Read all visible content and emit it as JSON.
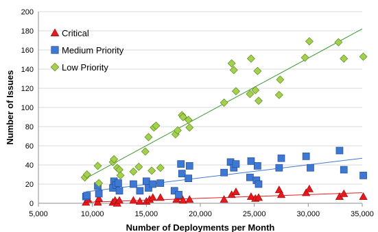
{
  "chart_data": {
    "type": "scatter",
    "title": "",
    "xlabel": "Number of Deployments per Month",
    "ylabel": "Number of Issues",
    "xlim": [
      5000,
      35000
    ],
    "ylim": [
      0,
      200
    ],
    "xticks": [
      "5,000",
      "10,000",
      "15,000",
      "20,000",
      "25,000",
      "30,000",
      "35,000"
    ],
    "yticks": [
      "0",
      "20",
      "40",
      "60",
      "80",
      "100",
      "120",
      "140",
      "160",
      "180",
      "200"
    ],
    "grid": true,
    "legend_position": "top-left",
    "series": [
      {
        "name": "Critical",
        "marker": "triangle",
        "color": "#e8191c",
        "trend": [
          [
            9400,
            1
          ],
          [
            35000,
            11
          ]
        ],
        "points": [
          [
            9400,
            1
          ],
          [
            9600,
            4
          ],
          [
            10500,
            1
          ],
          [
            10600,
            5
          ],
          [
            11900,
            1
          ],
          [
            12100,
            3
          ],
          [
            12300,
            0
          ],
          [
            12500,
            3
          ],
          [
            13800,
            3
          ],
          [
            14400,
            2
          ],
          [
            15000,
            2
          ],
          [
            15300,
            4
          ],
          [
            15600,
            6
          ],
          [
            16300,
            6
          ],
          [
            17800,
            4
          ],
          [
            18200,
            7
          ],
          [
            18400,
            3
          ],
          [
            19000,
            4
          ],
          [
            22200,
            4
          ],
          [
            22900,
            9
          ],
          [
            23300,
            12
          ],
          [
            24700,
            7
          ],
          [
            25100,
            5
          ],
          [
            25400,
            6
          ],
          [
            27300,
            14
          ],
          [
            27500,
            9
          ],
          [
            29800,
            11
          ],
          [
            30100,
            15
          ],
          [
            32900,
            7
          ],
          [
            33300,
            10
          ],
          [
            35100,
            7
          ]
        ]
      },
      {
        "name": "Medium Priority",
        "marker": "square",
        "color": "#3f78d3",
        "trend": [
          [
            9400,
            12
          ],
          [
            35000,
            47
          ]
        ],
        "points": [
          [
            9400,
            7
          ],
          [
            9500,
            8
          ],
          [
            10500,
            18
          ],
          [
            10600,
            10
          ],
          [
            11900,
            16
          ],
          [
            12000,
            23
          ],
          [
            12200,
            19
          ],
          [
            12400,
            21
          ],
          [
            12500,
            13
          ],
          [
            13800,
            20
          ],
          [
            14400,
            13
          ],
          [
            15000,
            23
          ],
          [
            15200,
            16
          ],
          [
            15600,
            20
          ],
          [
            16300,
            21
          ],
          [
            17600,
            13
          ],
          [
            18000,
            9
          ],
          [
            18200,
            41
          ],
          [
            18300,
            31
          ],
          [
            18900,
            26
          ],
          [
            19000,
            39
          ],
          [
            22200,
            32
          ],
          [
            22800,
            43
          ],
          [
            23100,
            37
          ],
          [
            23300,
            41
          ],
          [
            24600,
            27
          ],
          [
            24700,
            44
          ],
          [
            25200,
            24
          ],
          [
            25300,
            39
          ],
          [
            25400,
            20
          ],
          [
            27300,
            37
          ],
          [
            27500,
            47
          ],
          [
            29800,
            49
          ],
          [
            30200,
            37
          ],
          [
            32900,
            55
          ],
          [
            33300,
            35
          ],
          [
            35100,
            29
          ]
        ]
      },
      {
        "name": "Low Priority",
        "marker": "diamond",
        "color": "#a3d04d",
        "trend": [
          [
            9400,
            26
          ],
          [
            35000,
            182
          ]
        ],
        "points": [
          [
            9300,
            27
          ],
          [
            9500,
            30
          ],
          [
            10500,
            39
          ],
          [
            10600,
            21
          ],
          [
            11900,
            43
          ],
          [
            12000,
            46
          ],
          [
            12300,
            37
          ],
          [
            12500,
            35
          ],
          [
            12600,
            29
          ],
          [
            13800,
            33
          ],
          [
            14300,
            38
          ],
          [
            14900,
            54
          ],
          [
            15200,
            69
          ],
          [
            15500,
            34
          ],
          [
            15700,
            79
          ],
          [
            15900,
            81
          ],
          [
            16300,
            37
          ],
          [
            17700,
            72
          ],
          [
            17900,
            76
          ],
          [
            18300,
            92
          ],
          [
            18400,
            90
          ],
          [
            18900,
            87
          ],
          [
            19000,
            79
          ],
          [
            22200,
            105
          ],
          [
            22900,
            146
          ],
          [
            23100,
            139
          ],
          [
            23300,
            117
          ],
          [
            24600,
            114
          ],
          [
            24700,
            151
          ],
          [
            25100,
            118
          ],
          [
            25300,
            138
          ],
          [
            25400,
            107
          ],
          [
            27300,
            113
          ],
          [
            27400,
            129
          ],
          [
            29700,
            152
          ],
          [
            30100,
            169
          ],
          [
            32800,
            168
          ],
          [
            33300,
            151
          ],
          [
            35100,
            153
          ]
        ]
      }
    ]
  }
}
